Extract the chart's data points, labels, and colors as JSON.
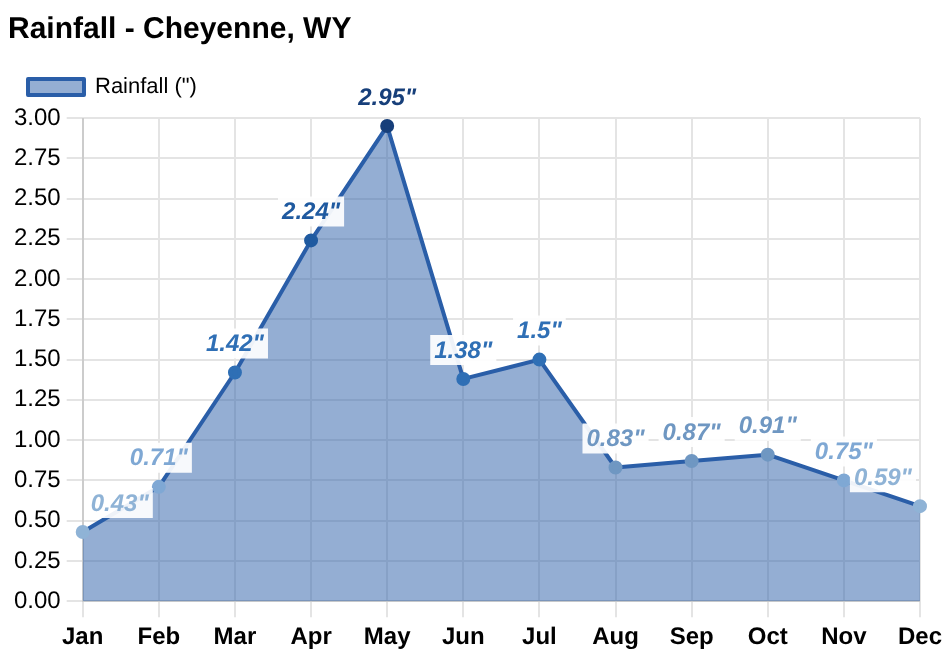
{
  "chart_data": {
    "type": "area",
    "title": "Rainfall - Cheyenne, WY",
    "categories": [
      "Jan",
      "Feb",
      "Mar",
      "Apr",
      "May",
      "Jun",
      "Jul",
      "Aug",
      "Sep",
      "Oct",
      "Nov",
      "Dec"
    ],
    "series": [
      {
        "name": "Rainfall (\")",
        "color": "#2a5ea8",
        "values": [
          0.43,
          0.71,
          1.42,
          2.24,
          2.95,
          1.38,
          1.5,
          0.83,
          0.87,
          0.91,
          0.75,
          0.59
        ],
        "colors": [
          "#8fb3d6",
          "#7fa8d4",
          "#2f6fb5",
          "#1f5aa0",
          "#173f7a",
          "#2f6fb5",
          "#2f6fb5",
          "#6f97c2",
          "#6f97c2",
          "#6f97c2",
          "#7fa8d4",
          "#8fb3d6"
        ],
        "value_labels": [
          "0.43\"",
          "0.71\"",
          "1.42\"",
          "2.24\"",
          "2.95\"",
          "1.38\"",
          "1.5\"",
          "0.83\"",
          "0.87\"",
          "0.91\"",
          "0.75\"",
          "0.59\""
        ]
      }
    ],
    "ylim": [
      0,
      3
    ],
    "yticks": [
      {
        "value": 0,
        "label": "0.00"
      },
      {
        "value": 0.25,
        "label": "0.25"
      },
      {
        "value": 0.5,
        "label": "0.50"
      },
      {
        "value": 0.75,
        "label": "0.75"
      },
      {
        "value": 1,
        "label": "1.00"
      },
      {
        "value": 1.25,
        "label": "1.25"
      },
      {
        "value": 1.5,
        "label": "1.50"
      },
      {
        "value": 1.75,
        "label": "1.75"
      },
      {
        "value": 2,
        "label": "2.00"
      },
      {
        "value": 2.25,
        "label": "2.25"
      },
      {
        "value": 2.5,
        "label": "2.50"
      },
      {
        "value": 2.75,
        "label": "2.75"
      },
      {
        "value": 3,
        "label": "3.00"
      }
    ],
    "grid": true,
    "legend": "top left",
    "marker": "circle",
    "line_style": "solid"
  }
}
